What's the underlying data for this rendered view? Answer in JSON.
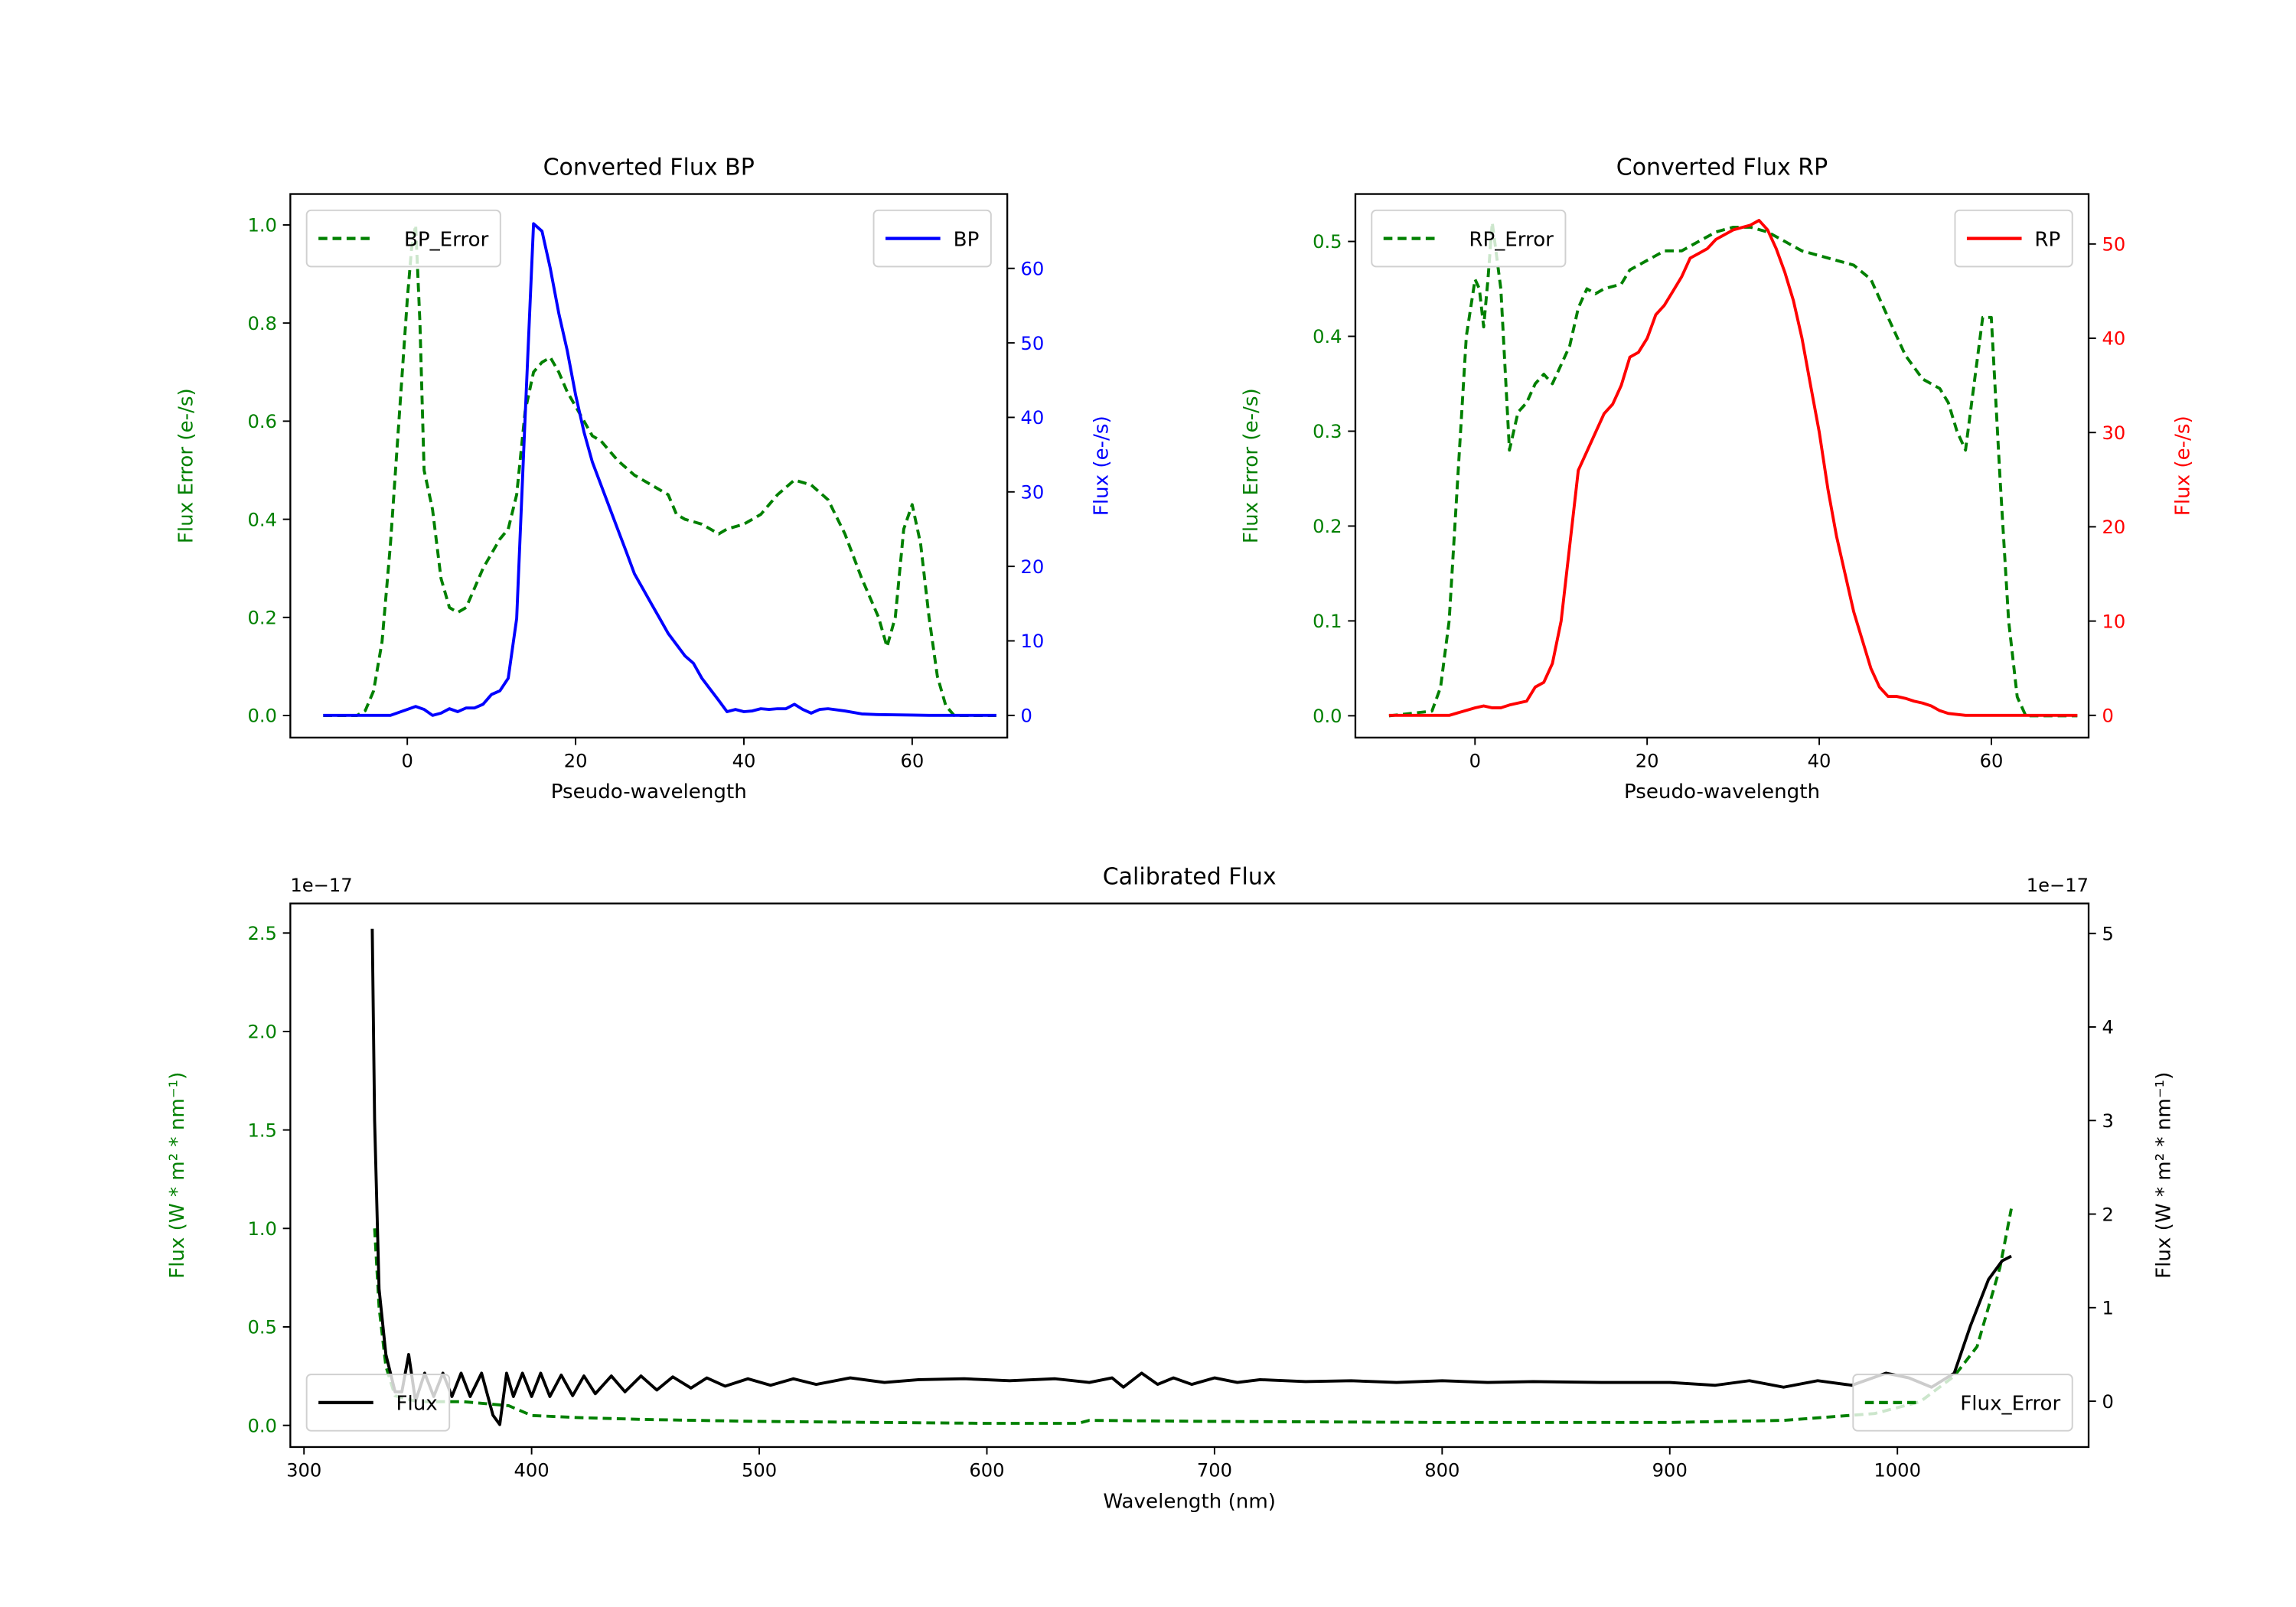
{
  "colors": {
    "error": "#008000",
    "bp": "#0000ff",
    "rp": "#ff0000",
    "flux": "#000000"
  },
  "chart_data": [
    {
      "id": "bp",
      "type": "line",
      "title": "Converted Flux BP",
      "xlabel": "Pseudo-wavelength",
      "ylabel_left": "Flux Error (e-/s)",
      "ylabel_right": "Flux (e-/s)",
      "xlim": [
        -13.9,
        71.3
      ],
      "ylim_left": [
        -0.045,
        1.063
      ],
      "ylim_right": [
        -2.98,
        69.98
      ],
      "xticks": [
        0,
        20,
        40,
        60
      ],
      "xtick_labels": [
        "0",
        "20",
        "40",
        "60"
      ],
      "yticks_left": [
        0,
        0.2,
        0.4,
        0.6,
        0.8,
        1.0
      ],
      "ytick_labels_left": [
        "0.0",
        "0.2",
        "0.4",
        "0.6",
        "0.8",
        "1.0"
      ],
      "yticks_right": [
        0,
        10,
        20,
        30,
        40,
        50,
        60
      ],
      "ytick_labels_right": [
        "0",
        "10",
        "20",
        "30",
        "40",
        "50",
        "60"
      ],
      "left_color": "#008000",
      "right_color": "#0000ff",
      "legend_left": {
        "label": "BP_Error",
        "placement": "upper-left"
      },
      "legend_right": {
        "label": "BP",
        "placement": "upper-right"
      },
      "series": [
        {
          "name": "BP_Error",
          "axis": "left",
          "style": "dashed",
          "color": "#008000",
          "x": [
            -10,
            -6,
            -5,
            -4,
            -3,
            -2,
            -1,
            0,
            0.5,
            1,
            1.5,
            2,
            3,
            4,
            5,
            6,
            7,
            8,
            9,
            10,
            11,
            12,
            13,
            14,
            15,
            16,
            17,
            18,
            19,
            20,
            21,
            22,
            23,
            24,
            25,
            27,
            29,
            31,
            32,
            33,
            35,
            36,
            37,
            38,
            40,
            42,
            44,
            46,
            48,
            50,
            52,
            54,
            56,
            57,
            58,
            59,
            60,
            61,
            62,
            63,
            64,
            65,
            70
          ],
          "y": [
            0,
            0,
            0.01,
            0.05,
            0.15,
            0.35,
            0.6,
            0.85,
            0.95,
            1.0,
            0.8,
            0.5,
            0.42,
            0.28,
            0.22,
            0.21,
            0.22,
            0.26,
            0.3,
            0.33,
            0.36,
            0.38,
            0.45,
            0.62,
            0.7,
            0.72,
            0.73,
            0.7,
            0.66,
            0.63,
            0.6,
            0.57,
            0.56,
            0.54,
            0.52,
            0.49,
            0.47,
            0.45,
            0.41,
            0.4,
            0.39,
            0.38,
            0.37,
            0.38,
            0.39,
            0.41,
            0.45,
            0.48,
            0.47,
            0.44,
            0.37,
            0.28,
            0.2,
            0.14,
            0.2,
            0.38,
            0.43,
            0.35,
            0.2,
            0.08,
            0.02,
            0,
            0
          ]
        },
        {
          "name": "BP",
          "axis": "right",
          "style": "solid",
          "color": "#0000ff",
          "x": [
            -10,
            -2,
            0,
            1,
            2,
            3,
            4,
            5,
            6,
            7,
            8,
            9,
            10,
            11,
            12,
            13,
            14,
            15,
            16,
            17,
            18,
            19,
            20,
            21,
            22,
            23,
            24,
            25,
            26,
            27,
            28,
            29,
            30,
            31,
            32,
            33,
            34,
            35,
            36,
            37,
            38,
            39,
            40,
            41,
            42,
            43,
            44,
            45,
            46,
            47,
            48,
            49,
            50,
            52,
            54,
            56,
            60,
            62,
            70
          ],
          "y": [
            0,
            0,
            0.8,
            1.2,
            0.8,
            0,
            0.3,
            0.9,
            0.5,
            1,
            1,
            1.5,
            2.8,
            3.3,
            5,
            13,
            40,
            66,
            65,
            60,
            54,
            49,
            43,
            38,
            34,
            31,
            28,
            25,
            22,
            19,
            17,
            15,
            13,
            11,
            9.5,
            8,
            7,
            5,
            3.5,
            2,
            0.5,
            0.8,
            0.5,
            0.6,
            0.9,
            0.8,
            0.9,
            0.9,
            1.5,
            0.8,
            0.3,
            0.8,
            0.9,
            0.6,
            0.2,
            0.1,
            0.05,
            0,
            0
          ]
        }
      ]
    },
    {
      "id": "rp",
      "type": "line",
      "title": "Converted Flux RP",
      "xlabel": "Pseudo-wavelength",
      "ylabel_left": "Flux Error (e-/s)",
      "ylabel_right": "Flux (e-/s)",
      "xlim": [
        -13.9,
        71.3
      ],
      "ylim_left": [
        -0.023,
        0.55
      ],
      "ylim_right": [
        -2.36,
        55.3
      ],
      "xticks": [
        0,
        20,
        40,
        60
      ],
      "xtick_labels": [
        "0",
        "20",
        "40",
        "60"
      ],
      "yticks_left": [
        0,
        0.1,
        0.2,
        0.3,
        0.4,
        0.5
      ],
      "ytick_labels_left": [
        "0.0",
        "0.1",
        "0.2",
        "0.3",
        "0.4",
        "0.5"
      ],
      "yticks_right": [
        0,
        10,
        20,
        30,
        40,
        50
      ],
      "ytick_labels_right": [
        "0",
        "10",
        "20",
        "30",
        "40",
        "50"
      ],
      "left_color": "#008000",
      "right_color": "#ff0000",
      "legend_left": {
        "label": "RP_Error",
        "placement": "upper-left"
      },
      "legend_right": {
        "label": "RP",
        "placement": "upper-right"
      },
      "series": [
        {
          "name": "RP_Error",
          "axis": "left",
          "style": "dashed",
          "color": "#008000",
          "x": [
            -10,
            -5,
            -4,
            -3,
            -2,
            -1,
            0,
            0.5,
            1,
            1.5,
            2,
            3,
            4,
            5,
            6,
            7,
            8,
            9,
            10,
            11,
            12,
            13,
            14,
            15,
            17,
            18,
            20,
            22,
            24,
            26,
            28,
            30,
            32,
            34,
            36,
            38,
            40,
            42,
            44,
            46,
            48,
            50,
            52,
            54,
            55,
            56,
            57,
            58,
            59,
            60,
            61,
            62,
            63,
            64,
            70
          ],
          "y": [
            0,
            0.005,
            0.03,
            0.1,
            0.25,
            0.4,
            0.46,
            0.45,
            0.41,
            0.46,
            0.52,
            0.45,
            0.28,
            0.32,
            0.33,
            0.35,
            0.36,
            0.35,
            0.37,
            0.39,
            0.43,
            0.45,
            0.445,
            0.45,
            0.455,
            0.47,
            0.48,
            0.49,
            0.49,
            0.5,
            0.51,
            0.515,
            0.515,
            0.51,
            0.5,
            0.49,
            0.485,
            0.48,
            0.475,
            0.46,
            0.42,
            0.38,
            0.355,
            0.345,
            0.33,
            0.3,
            0.28,
            0.35,
            0.42,
            0.42,
            0.25,
            0.1,
            0.02,
            0,
            0
          ]
        },
        {
          "name": "RP",
          "axis": "right",
          "style": "solid",
          "color": "#ff0000",
          "x": [
            -10,
            -3,
            0,
            1,
            2,
            3,
            4,
            5,
            6,
            7,
            8,
            9,
            10,
            11,
            12,
            13,
            14,
            15,
            16,
            17,
            18,
            19,
            20,
            21,
            22,
            23,
            24,
            25,
            26,
            27,
            28,
            30,
            32,
            33,
            34,
            35,
            36,
            37,
            38,
            39,
            40,
            41,
            42,
            43,
            44,
            45,
            46,
            47,
            48,
            49,
            50,
            51,
            52,
            53,
            54,
            55,
            57,
            70
          ],
          "y": [
            0,
            0,
            0.8,
            1,
            0.8,
            0.8,
            1.1,
            1.3,
            1.5,
            3,
            3.5,
            5.5,
            10,
            18,
            26,
            28,
            30,
            32,
            33,
            35,
            38,
            38.5,
            40,
            42.5,
            43.5,
            45,
            46.5,
            48.5,
            49,
            49.5,
            50.5,
            51.5,
            52,
            52.5,
            51.5,
            49.5,
            47,
            44,
            40,
            35,
            30,
            24,
            19,
            15,
            11,
            8,
            5,
            3,
            2,
            2,
            1.8,
            1.5,
            1.3,
            1,
            0.5,
            0.2,
            0,
            0
          ]
        }
      ]
    },
    {
      "id": "cal",
      "type": "line",
      "title": "Calibrated Flux",
      "xlabel": "Wavelength (nm)",
      "ylabel_left": "Flux (W * m² * nm⁻¹)",
      "ylabel_right": "Flux (W * m² * nm⁻¹)",
      "offset_left": "1e−17",
      "offset_right": "1e−17",
      "xlim": [
        294,
        1084
      ],
      "ylim_left": [
        -0.11,
        2.65
      ],
      "ylim_right": [
        -0.49,
        5.32
      ],
      "xticks": [
        300,
        400,
        500,
        600,
        700,
        800,
        900,
        1000
      ],
      "xtick_labels": [
        "300",
        "400",
        "500",
        "600",
        "700",
        "800",
        "900",
        "1000"
      ],
      "yticks_left": [
        0,
        0.5,
        1.0,
        1.5,
        2.0,
        2.5
      ],
      "ytick_labels_left": [
        "0.0",
        "0.5",
        "1.0",
        "1.5",
        "2.0",
        "2.5"
      ],
      "yticks_right": [
        0,
        1,
        2,
        3,
        4,
        5
      ],
      "ytick_labels_right": [
        "0",
        "1",
        "2",
        "3",
        "4",
        "5"
      ],
      "left_color": "#008000",
      "right_color": "#000000",
      "legend_left": {
        "label": "Flux",
        "placement": "lower-left"
      },
      "legend_right": {
        "label": "Flux_Error",
        "placement": "lower-right"
      },
      "series": [
        {
          "name": "Flux_Error",
          "axis": "left",
          "style": "dashed",
          "color": "#008000",
          "x": [
            331,
            333,
            336,
            340,
            350,
            370,
            390,
            400,
            420,
            450,
            500,
            600,
            640,
            645,
            700,
            800,
            900,
            950,
            990,
            1010,
            1025,
            1035,
            1045,
            1050
          ],
          "y": [
            1.0,
            0.6,
            0.3,
            0.15,
            0.12,
            0.12,
            0.1,
            0.05,
            0.04,
            0.03,
            0.02,
            0.01,
            0.01,
            0.025,
            0.02,
            0.015,
            0.015,
            0.025,
            0.06,
            0.12,
            0.25,
            0.4,
            0.8,
            1.1
          ]
        },
        {
          "name": "Flux",
          "axis": "right",
          "style": "solid",
          "color": "#000000",
          "x": [
            330,
            331,
            333,
            336,
            340,
            343,
            346,
            349,
            353,
            357,
            361,
            365,
            369,
            373,
            378,
            383,
            386,
            389,
            392,
            396,
            400,
            404,
            408,
            413,
            418,
            423,
            428,
            435,
            441,
            448,
            455,
            462,
            470,
            477,
            485,
            495,
            505,
            515,
            525,
            540,
            555,
            570,
            590,
            610,
            630,
            645,
            655,
            660,
            668,
            675,
            682,
            690,
            700,
            710,
            720,
            740,
            760,
            780,
            800,
            820,
            840,
            870,
            900,
            920,
            935,
            950,
            965,
            980,
            995,
            1005,
            1015,
            1025,
            1032,
            1040,
            1046,
            1050
          ],
          "y": [
            5.05,
            3.0,
            1.2,
            0.5,
            0.1,
            0.1,
            0.5,
            0.0,
            0.3,
            0.05,
            0.3,
            0.05,
            0.3,
            0.05,
            0.3,
            -0.15,
            -0.25,
            0.3,
            0.05,
            0.3,
            0.05,
            0.3,
            0.05,
            0.28,
            0.06,
            0.27,
            0.08,
            0.27,
            0.1,
            0.27,
            0.12,
            0.26,
            0.14,
            0.25,
            0.16,
            0.24,
            0.17,
            0.24,
            0.18,
            0.25,
            0.2,
            0.23,
            0.24,
            0.22,
            0.24,
            0.2,
            0.25,
            0.15,
            0.3,
            0.18,
            0.25,
            0.18,
            0.25,
            0.2,
            0.23,
            0.21,
            0.22,
            0.2,
            0.22,
            0.2,
            0.21,
            0.2,
            0.2,
            0.17,
            0.22,
            0.15,
            0.22,
            0.17,
            0.3,
            0.25,
            0.15,
            0.3,
            0.8,
            1.3,
            1.5,
            1.55
          ]
        }
      ]
    }
  ]
}
